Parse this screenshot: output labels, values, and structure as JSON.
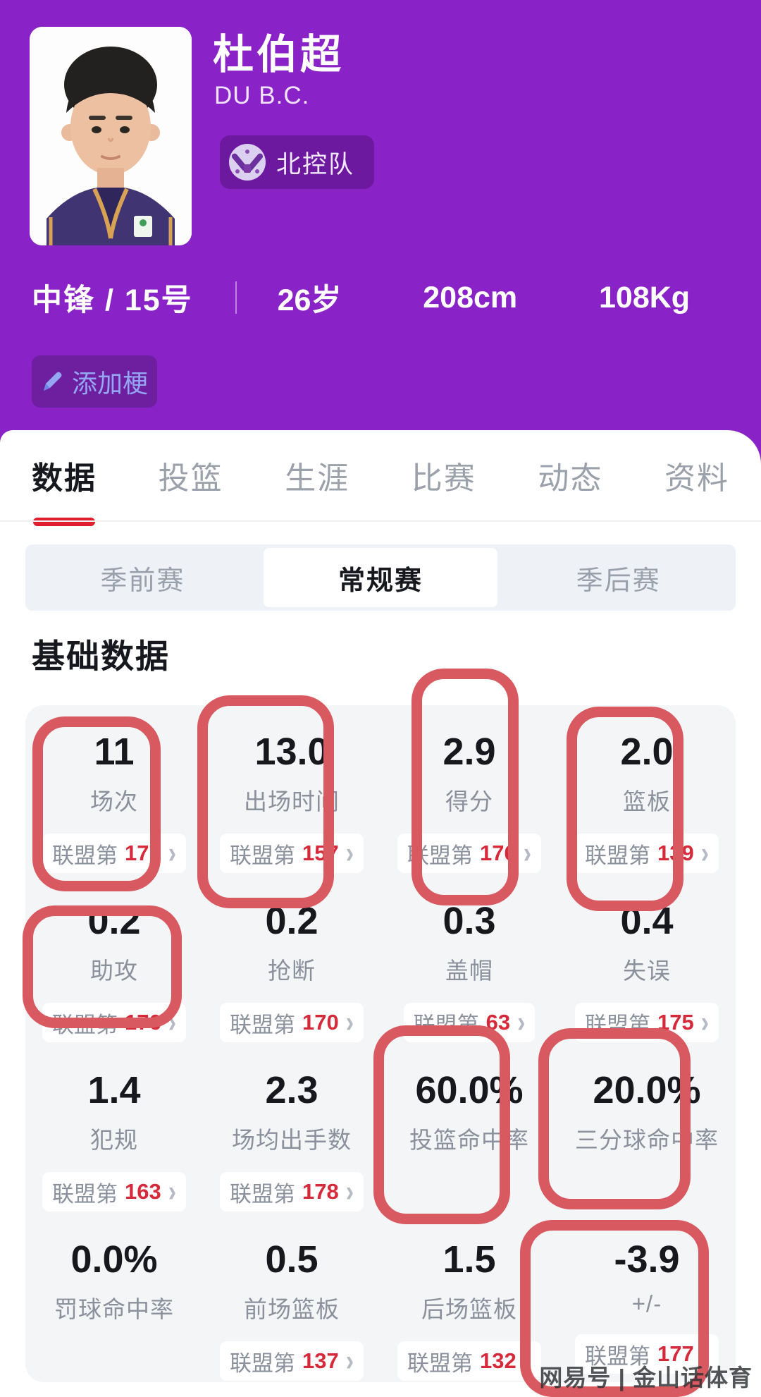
{
  "colors": {
    "header_purple": "#8a23c7",
    "accent_red": "#e01e2e",
    "annotation_red": "#d8595f",
    "rank_red": "#d6293a"
  },
  "header": {
    "name": "杜伯超",
    "name_en": "DU B.C.",
    "team": "北控队",
    "position_number": "中锋 / 15号",
    "age": "26岁",
    "height": "208cm",
    "weight": "108Kg",
    "add_meme_label": "添加梗"
  },
  "tabs": {
    "active_index": 0,
    "items": [
      {
        "key": "data",
        "label": "数据"
      },
      {
        "key": "shooting",
        "label": "投篮"
      },
      {
        "key": "career",
        "label": "生涯"
      },
      {
        "key": "games",
        "label": "比赛"
      },
      {
        "key": "news",
        "label": "动态"
      },
      {
        "key": "profile",
        "label": "资料"
      }
    ]
  },
  "season_tabs": {
    "active_index": 1,
    "items": [
      {
        "key": "preseason",
        "label": "季前赛"
      },
      {
        "key": "regular",
        "label": "常规赛"
      },
      {
        "key": "playoffs",
        "label": "季后赛"
      }
    ]
  },
  "stats": {
    "section_title": "基础数据",
    "rank_prefix": "联盟第",
    "chevron": "›",
    "cells": [
      {
        "key": "games",
        "value": "11",
        "label": "场次",
        "rank": "177",
        "annotated": true
      },
      {
        "key": "minutes",
        "value": "13.0",
        "label": "出场时间",
        "rank": "157",
        "annotated": true
      },
      {
        "key": "points",
        "value": "2.9",
        "label": "得分",
        "rank": "176",
        "annotated": true
      },
      {
        "key": "rebounds",
        "value": "2.0",
        "label": "篮板",
        "rank": "139",
        "annotated": true
      },
      {
        "key": "assists",
        "value": "0.2",
        "label": "助攻",
        "rank": "176",
        "annotated": true
      },
      {
        "key": "steals",
        "value": "0.2",
        "label": "抢断",
        "rank": "170",
        "annotated": false
      },
      {
        "key": "blocks",
        "value": "0.3",
        "label": "盖帽",
        "rank": "63",
        "annotated": false
      },
      {
        "key": "turnovers",
        "value": "0.4",
        "label": "失误",
        "rank": "175",
        "annotated": false
      },
      {
        "key": "fouls",
        "value": "1.4",
        "label": "犯规",
        "rank": "163",
        "annotated": false
      },
      {
        "key": "fga",
        "value": "2.3",
        "label": "场均出手数",
        "rank": "178",
        "annotated": false
      },
      {
        "key": "fg-pct",
        "value": "60.0%",
        "label": "投篮命中率",
        "rank": null,
        "annotated": true
      },
      {
        "key": "three-pct",
        "value": "20.0%",
        "label": "三分球命中率",
        "rank": null,
        "annotated": true
      },
      {
        "key": "ft-pct",
        "value": "0.0%",
        "label": "罚球命中率",
        "rank": null,
        "annotated": false
      },
      {
        "key": "oreb",
        "value": "0.5",
        "label": "前场篮板",
        "rank": "137",
        "annotated": false
      },
      {
        "key": "dreb",
        "value": "1.5",
        "label": "后场篮板",
        "rank": "132",
        "annotated": false
      },
      {
        "key": "plus-minus",
        "value": "-3.9",
        "label": "+/-",
        "rank": "177",
        "annotated": true
      }
    ]
  },
  "watermark": "网易号 | 金山话体育"
}
